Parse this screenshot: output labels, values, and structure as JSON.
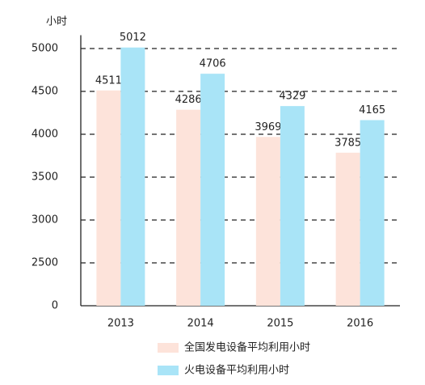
{
  "chart_data": {
    "type": "bar",
    "y_axis_label": "小时",
    "categories": [
      "2013",
      "2014",
      "2015",
      "2016"
    ],
    "series": [
      {
        "name": "全国发电设备平均利用小时",
        "color": "#fde3da",
        "values": [
          4511,
          4286,
          3969,
          3785
        ]
      },
      {
        "name": "火电设备平均利用小时",
        "color": "#a9e4f7",
        "values": [
          5012,
          4706,
          4329,
          4165
        ]
      }
    ],
    "ylim": [
      0,
      5250
    ],
    "y_break": [
      0,
      2000
    ],
    "yticks": [
      0,
      2500,
      3000,
      3500,
      4000,
      4500,
      5000
    ],
    "grid": true,
    "legend": "bottom"
  }
}
